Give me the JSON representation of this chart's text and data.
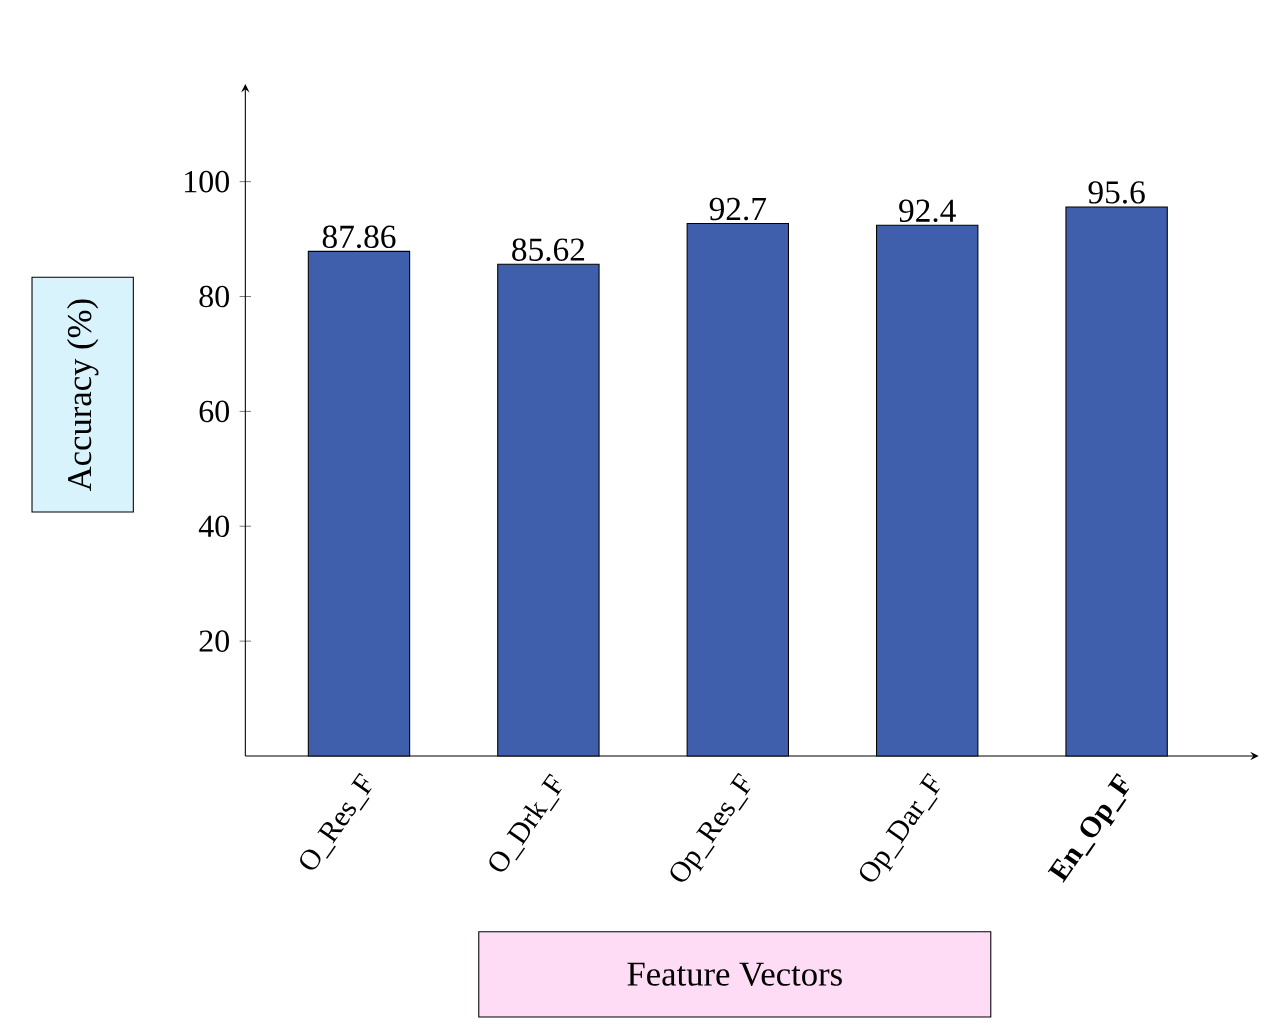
{
  "chart_data": {
    "type": "bar",
    "categories": [
      "O_Res_F",
      "O_Drk_F",
      "Op_Res_F",
      "Op_Dar_F",
      "**En_Op_F**"
    ],
    "values": [
      87.86,
      85.62,
      92.7,
      92.4,
      95.6
    ],
    "color": "#3f5fad",
    "xlabel": "Feature Vectors",
    "ylabel": "Accuracy (%)",
    "ylim": [
      0,
      117
    ],
    "yticks": [
      20,
      40,
      60,
      80,
      100
    ],
    "data_labels": true,
    "grid": false
  }
}
